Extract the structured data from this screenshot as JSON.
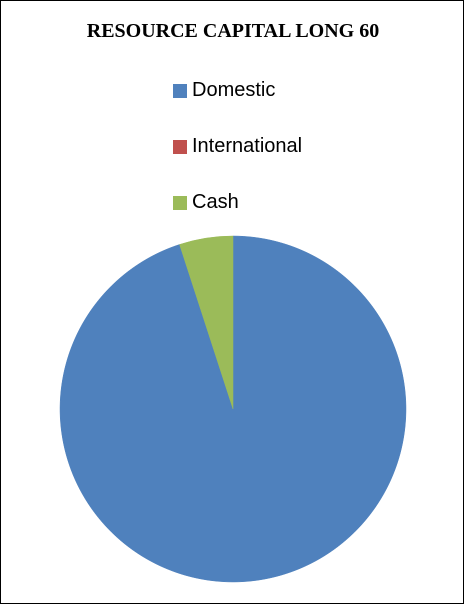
{
  "chart_data": {
    "type": "pie",
    "title": "RESOURCE CAPITAL LONG 60",
    "legend_position": "top",
    "categories": [
      "Domestic",
      "International",
      "Cash"
    ],
    "values": [
      95,
      0,
      5
    ],
    "unit": "%",
    "colors": [
      "#4f81bd",
      "#c0504d",
      "#9bbb59"
    ],
    "start_angle_deg": 0,
    "direction": "clockwise"
  }
}
